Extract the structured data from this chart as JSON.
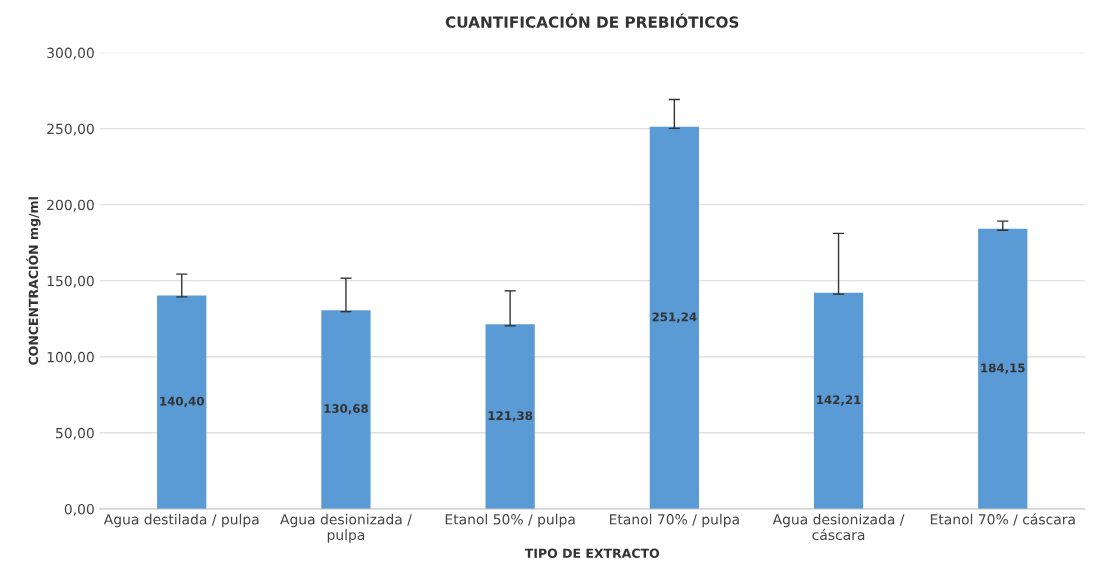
{
  "chart_data": {
    "type": "bar",
    "title": "CUANTIFICACIÓN DE PREBIÓTICOS",
    "xlabel": "TIPO DE EXTRACTO",
    "ylabel": "CONCENTRACIÓN mg/ml",
    "categories": [
      "Agua destilada / pulpa",
      "Agua desionizada /\npulpa",
      "Etanol 50% / pulpa",
      "Etanol 70% / pulpa",
      "Agua desionizada /\ncáscara",
      "Etanol 70% / cáscara"
    ],
    "values": [
      140.4,
      130.68,
      121.38,
      251.24,
      142.21,
      184.15
    ],
    "value_labels": [
      "140,40",
      "130,68",
      "121,38",
      "251,24",
      "142,21",
      "184,15"
    ],
    "errors": [
      [
        139.4,
        154.4
      ],
      [
        129.7,
        151.7
      ],
      [
        120.4,
        143.4
      ],
      [
        250.2,
        269.2
      ],
      [
        141.2,
        181.2
      ],
      [
        183.2,
        189.2
      ]
    ],
    "color": "#5b9bd5",
    "ylim": [
      0,
      300
    ],
    "yticks": [
      {
        "value": 0,
        "label": "0,00"
      },
      {
        "value": 50,
        "label": "50,00"
      },
      {
        "value": 100,
        "label": "100,00"
      },
      {
        "value": 150,
        "label": "150,00"
      },
      {
        "value": 200,
        "label": "200,00"
      },
      {
        "value": 250,
        "label": "250,00"
      },
      {
        "value": 300,
        "label": "300,00"
      }
    ],
    "grid": "y"
  }
}
